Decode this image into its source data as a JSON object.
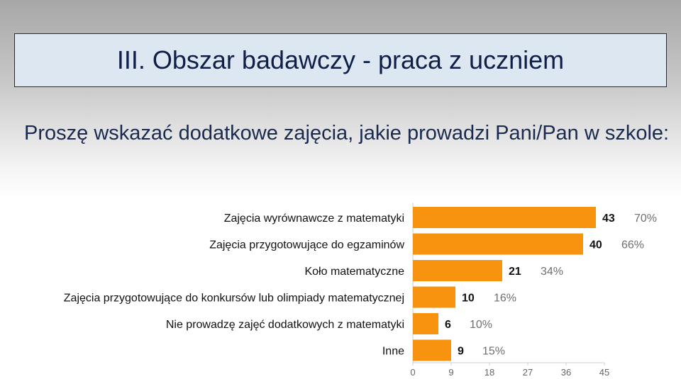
{
  "slide": {
    "title": "III. Obszar badawczy - praca z uczniem",
    "question": "Proszę wskazać dodatkowe zajęcia, jakie prowadzi Pani/Pan w szkole:"
  },
  "colors": {
    "bar": "#f7930f",
    "title_bg": "#dde7f1",
    "title_text": "#0f1f48",
    "percent_text": "#6f6f6f"
  },
  "chart_data": {
    "type": "bar",
    "orientation": "horizontal",
    "categories": [
      "Zajęcia wyrównawcze z matematyki",
      "Zajęcia przygotowujące do egzaminów",
      "Koło matematyczne",
      "Zajęcia przygotowujące do konkursów lub olimpiady matematycznej",
      "Nie prowadzę zajęć dodatkowych z matematyki",
      "Inne"
    ],
    "values": [
      43,
      40,
      21,
      10,
      6,
      9
    ],
    "percent_labels": [
      "70%",
      "66%",
      "34%",
      "16%",
      "10%",
      "15%"
    ],
    "xlim": [
      0,
      45
    ],
    "xticks": [
      0,
      9,
      18,
      27,
      36,
      45
    ],
    "grid": false,
    "legend": "none"
  }
}
